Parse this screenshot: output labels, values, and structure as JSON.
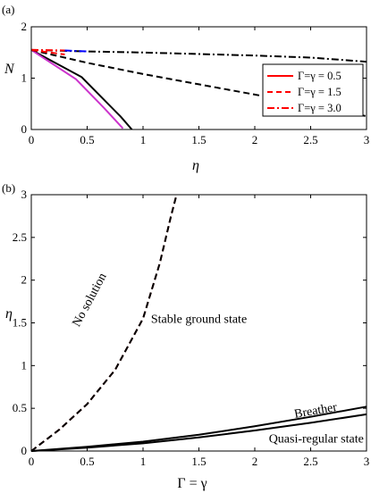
{
  "chart_data": [
    {
      "panel": "(a)",
      "type": "line",
      "xlabel": "η",
      "ylabel": "N",
      "xlim": [
        0,
        3
      ],
      "ylim": [
        0,
        2
      ],
      "xticks": [
        "0",
        "0.5",
        "1",
        "1.5",
        "2",
        "2.5",
        "3"
      ],
      "yticks": [
        "0",
        "1",
        "2"
      ],
      "legend_position": "right",
      "series": [
        {
          "name": "Γ=γ = 0.5",
          "style": "solid",
          "color": "#000000",
          "points": [
            [
              0,
              1.55
            ],
            [
              0.45,
              1.02
            ],
            [
              0.8,
              0.25
            ],
            [
              0.9,
              0
            ]
          ]
        },
        {
          "style": "solid",
          "color": "#cc33cc",
          "points": [
            [
              0,
              1.55
            ],
            [
              0.4,
              0.98
            ],
            [
              0.65,
              0.42
            ],
            [
              0.82,
              0.02
            ]
          ]
        },
        {
          "name": "Γ=γ = 1.5",
          "style": "dashed",
          "color": "#000000",
          "points": [
            [
              0,
              1.55
            ],
            [
              0.5,
              1.3
            ],
            [
              1,
              1.08
            ],
            [
              1.5,
              0.88
            ],
            [
              2,
              0.68
            ],
            [
              2.5,
              0.48
            ],
            [
              3,
              0.26
            ]
          ]
        },
        {
          "name": "Γ=γ = 3.0",
          "style": "dashdot",
          "color": "#000000",
          "points": [
            [
              0,
              1.55
            ],
            [
              0.5,
              1.52
            ],
            [
              1,
              1.5
            ],
            [
              1.5,
              1.47
            ],
            [
              2,
              1.44
            ],
            [
              2.5,
              1.4
            ],
            [
              3,
              1.32
            ]
          ]
        },
        {
          "style": "solid",
          "color": "#ff0000",
          "points": [
            [
              0,
              1.55
            ],
            [
              0.05,
              1.55
            ]
          ]
        },
        {
          "style": "dashed",
          "color": "#ff0000",
          "points": [
            [
              0,
              1.55
            ],
            [
              0.3,
              1.46
            ]
          ]
        },
        {
          "style": "dashdot",
          "color": "#ff0000",
          "points": [
            [
              0,
              1.55
            ],
            [
              0.3,
              1.54
            ]
          ]
        },
        {
          "style": "dashdot",
          "color": "#0000ff",
          "points": [
            [
              0.3,
              1.54
            ],
            [
              0.5,
              1.52
            ]
          ]
        }
      ],
      "legend": [
        {
          "label": "Γ=γ = 0.5",
          "style": "solid",
          "color": "#ff0000"
        },
        {
          "label": "Γ=γ = 1.5",
          "style": "dashed",
          "color": "#ff0000"
        },
        {
          "label": "Γ=γ = 3.0",
          "style": "dashdot",
          "color": "#ff0000"
        }
      ]
    },
    {
      "panel": "(b)",
      "type": "line",
      "xlabel": "Γ = γ",
      "ylabel": "η",
      "xlim": [
        0,
        3
      ],
      "ylim": [
        0,
        3
      ],
      "xticks": [
        "0",
        "0.5",
        "1",
        "1.5",
        "2",
        "2.5",
        "3"
      ],
      "yticks": [
        "0",
        "0.5",
        "1",
        "1.5",
        "2",
        "2.5",
        "3"
      ],
      "series": [
        {
          "style": "dashed",
          "color": "#8b0000",
          "points": [
            [
              0,
              0
            ],
            [
              0.25,
              0.25
            ],
            [
              0.5,
              0.55
            ],
            [
              0.75,
              0.95
            ],
            [
              1,
              1.55
            ],
            [
              1.15,
              2.2
            ],
            [
              1.25,
              2.75
            ],
            [
              1.3,
              3
            ]
          ]
        },
        {
          "style": "dashed",
          "color": "#000000",
          "points": [
            [
              0,
              0
            ],
            [
              0.25,
              0.25
            ],
            [
              0.5,
              0.55
            ],
            [
              0.75,
              0.95
            ],
            [
              1,
              1.55
            ],
            [
              1.15,
              2.2
            ],
            [
              1.25,
              2.75
            ],
            [
              1.3,
              3
            ]
          ]
        },
        {
          "style": "solid",
          "color": "#000000",
          "points": [
            [
              0,
              0
            ],
            [
              0.5,
              0.05
            ],
            [
              1,
              0.11
            ],
            [
              1.5,
              0.19
            ],
            [
              2,
              0.29
            ],
            [
              2.5,
              0.4
            ],
            [
              3,
              0.52
            ]
          ]
        },
        {
          "style": "solid",
          "color": "#000000",
          "points": [
            [
              0,
              0
            ],
            [
              0.5,
              0.04
            ],
            [
              1,
              0.09
            ],
            [
              1.5,
              0.16
            ],
            [
              2,
              0.24
            ],
            [
              2.5,
              0.33
            ],
            [
              3,
              0.43
            ]
          ]
        }
      ],
      "annotations": [
        {
          "text": "No solution",
          "x": 0.55,
          "y": 1.75,
          "rotation": -62
        },
        {
          "text": "Stable ground state",
          "x": 1.5,
          "y": 1.5,
          "rotation": 0
        },
        {
          "text": "Breather",
          "x": 2.55,
          "y": 0.43,
          "rotation": -10
        },
        {
          "text": "Quasi-regular state",
          "x": 2.55,
          "y": 0.1,
          "rotation": 0
        }
      ]
    }
  ]
}
